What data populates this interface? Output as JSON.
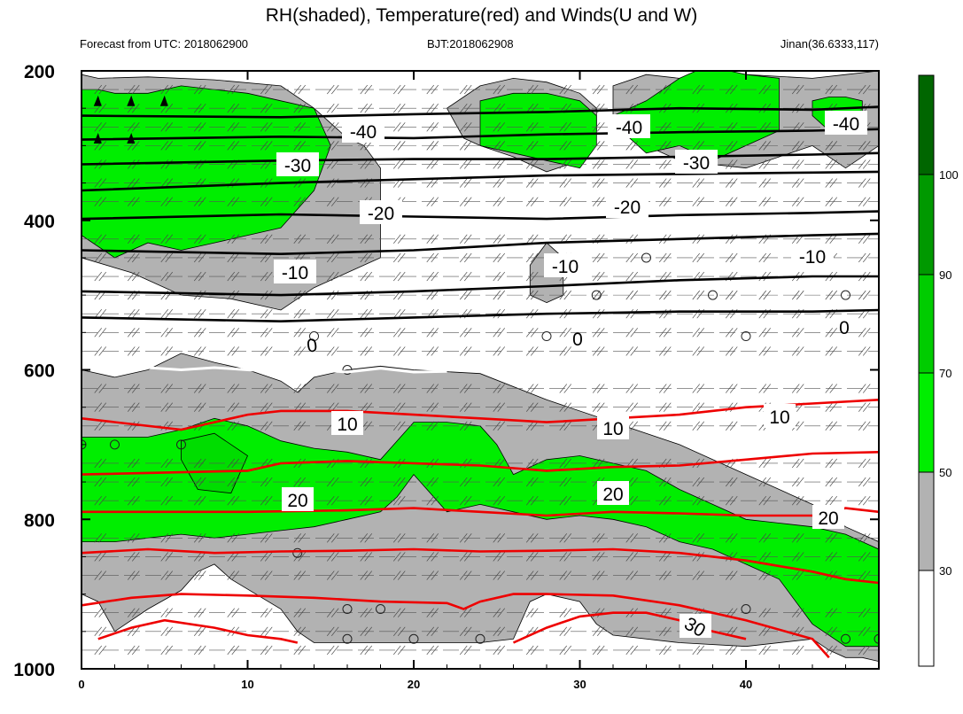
{
  "header": {
    "title": "RH(shaded), Temperature(red) and Winds(U and W)",
    "left": "Forecast from UTC: 2018062900",
    "center": "BJT:2018062908",
    "right": "Jinan(36.6333,117)"
  },
  "chart_data": {
    "type": "heatmap",
    "title": "RH(shaded), Temperature(red) and Winds(U and W)",
    "xlim": [
      0,
      48
    ],
    "ylim": [
      1000,
      200
    ],
    "x_ticks": [
      "0",
      "10",
      "20",
      "30",
      "40"
    ],
    "y_ticks": [
      "200",
      "400",
      "600",
      "800",
      "1000"
    ],
    "colorbar": {
      "levels": [
        "30",
        "50",
        "70",
        "90",
        "100"
      ],
      "colors": [
        "#ffffff",
        "#b2b2b2",
        "#00ee00",
        "#00cc00",
        "#009900",
        "#006600"
      ]
    },
    "rh_regions": {
      "gray_30_50": [
        {
          "x": [
            0,
            1,
            4,
            8,
            12,
            14,
            16,
            17,
            18,
            18,
            16,
            14,
            12,
            9,
            6,
            3,
            0
          ],
          "y": [
            205,
            210,
            208,
            212,
            220,
            250,
            290,
            300,
            330,
            450,
            470,
            490,
            520,
            505,
            500,
            470,
            450
          ]
        },
        {
          "x": [
            22,
            24,
            26,
            28,
            30,
            31,
            31,
            30,
            28,
            26,
            24,
            23,
            22
          ],
          "y": [
            250,
            220,
            210,
            215,
            230,
            250,
            280,
            320,
            335,
            315,
            300,
            290,
            250
          ]
        },
        {
          "x": [
            32,
            34,
            36,
            38,
            40,
            44,
            46,
            48,
            48,
            46,
            44,
            40,
            36,
            34,
            33,
            32
          ],
          "y": [
            220,
            205,
            210,
            200,
            205,
            210,
            205,
            200,
            300,
            330,
            300,
            330,
            320,
            300,
            280,
            260
          ]
        },
        {
          "x": [
            28,
            29,
            29,
            28,
            27,
            27
          ],
          "y": [
            510,
            500,
            450,
            430,
            460,
            500
          ]
        },
        {
          "x": [
            0,
            2,
            4,
            6,
            8,
            10,
            12,
            13,
            14,
            16,
            18,
            20,
            24,
            28,
            32,
            36,
            40,
            44,
            46,
            48,
            48,
            47,
            46,
            45,
            44,
            40,
            36,
            32,
            31,
            30,
            28,
            27,
            26,
            24,
            20,
            16,
            14,
            13,
            12,
            9,
            8,
            7,
            6,
            4,
            2,
            1,
            0
          ],
          "y": [
            600,
            610,
            600,
            578,
            590,
            600,
            615,
            630,
            610,
            600,
            595,
            600,
            605,
            640,
            670,
            700,
            740,
            780,
            810,
            830,
            990,
            985,
            985,
            975,
            960,
            970,
            965,
            955,
            940,
            910,
            900,
            910,
            960,
            965,
            965,
            965,
            965,
            950,
            920,
            880,
            860,
            870,
            895,
            920,
            950,
            910,
            900
          ]
        }
      ],
      "green_50_70": [
        {
          "x": [
            0,
            1,
            2,
            4,
            6,
            8,
            10,
            12,
            14,
            15,
            14,
            12,
            10,
            8,
            6,
            4,
            2,
            0
          ],
          "y": [
            225,
            225,
            230,
            230,
            220,
            225,
            230,
            240,
            250,
            300,
            360,
            410,
            420,
            430,
            440,
            430,
            450,
            420
          ]
        },
        {
          "x": [
            24,
            26,
            28,
            30,
            31,
            31,
            30,
            28,
            26,
            24
          ],
          "y": [
            240,
            230,
            230,
            240,
            260,
            300,
            330,
            320,
            310,
            300
          ]
        },
        {
          "x": [
            32,
            33,
            34,
            36,
            37,
            38,
            40,
            42,
            42,
            40,
            38,
            37,
            36,
            34,
            33,
            32
          ],
          "y": [
            260,
            250,
            240,
            210,
            200,
            195,
            205,
            210,
            280,
            300,
            320,
            310,
            300,
            310,
            290,
            270
          ]
        },
        {
          "x": [
            44,
            45,
            46,
            47,
            47,
            46,
            45,
            44
          ],
          "y": [
            240,
            235,
            235,
            240,
            260,
            280,
            280,
            260
          ]
        },
        {
          "x": [
            0,
            2,
            4,
            6,
            8,
            10,
            12,
            14,
            16,
            18,
            20,
            22,
            24,
            25,
            26,
            28,
            30,
            32,
            34,
            36,
            38,
            40,
            42,
            44,
            46,
            48,
            48,
            46,
            44,
            42,
            40,
            38,
            36,
            34,
            32,
            30,
            28,
            26,
            24,
            22,
            20,
            19,
            18,
            16,
            14,
            12,
            10,
            8,
            6,
            4,
            2,
            0
          ],
          "y": [
            690,
            690,
            690,
            680,
            665,
            675,
            695,
            705,
            710,
            720,
            670,
            670,
            675,
            700,
            740,
            720,
            715,
            725,
            735,
            760,
            780,
            800,
            805,
            810,
            820,
            840,
            970,
            970,
            940,
            880,
            860,
            840,
            830,
            810,
            800,
            795,
            800,
            790,
            780,
            790,
            740,
            770,
            790,
            800,
            810,
            815,
            820,
            825,
            820,
            825,
            830,
            830
          ]
        }
      ],
      "green_70_90": [
        {
          "x": [
            6,
            8,
            10,
            9,
            7,
            6
          ],
          "y": [
            695,
            685,
            715,
            765,
            760,
            720
          ]
        }
      ]
    },
    "temperature_contours": {
      "black": [
        {
          "level": -40,
          "x": [
            0,
            12,
            20,
            28,
            36,
            44,
            48
          ],
          "y": [
            260,
            262,
            258,
            255,
            250,
            252,
            248
          ]
        },
        {
          "level": -40,
          "x": [
            0,
            12,
            20,
            28,
            36,
            44,
            48
          ],
          "y": [
            292,
            288,
            290,
            285,
            282,
            280,
            278
          ]
        },
        {
          "level": -30,
          "x": [
            0,
            12,
            20,
            28,
            36,
            44,
            48
          ],
          "y": [
            325,
            320,
            318,
            318,
            315,
            312,
            310
          ]
        },
        {
          "level": -30,
          "x": [
            0,
            12,
            20,
            28,
            36,
            44,
            48
          ],
          "y": [
            360,
            350,
            345,
            340,
            338,
            336,
            335
          ]
        },
        {
          "level": -20,
          "x": [
            0,
            12,
            20,
            28,
            36,
            44,
            48
          ],
          "y": [
            398,
            392,
            395,
            398,
            393,
            390,
            388
          ]
        },
        {
          "level": -10,
          "x": [
            0,
            12,
            20,
            28,
            36,
            44,
            48
          ],
          "y": [
            440,
            445,
            440,
            430,
            425,
            420,
            418
          ]
        },
        {
          "level": -10,
          "x": [
            0,
            12,
            20,
            28,
            36,
            44,
            48
          ],
          "y": [
            495,
            500,
            495,
            488,
            480,
            475,
            475
          ]
        },
        {
          "level": -10,
          "x": [
            0,
            12,
            20,
            28,
            36,
            44,
            48
          ],
          "y": [
            530,
            535,
            530,
            525,
            522,
            522,
            520
          ]
        }
      ],
      "zero": [
        {
          "level": 0,
          "x": [
            1,
            4,
            6,
            8,
            10,
            12,
            14,
            16,
            18,
            20,
            22
          ],
          "y": [
            600,
            597,
            600,
            597,
            600,
            602,
            600,
            603,
            598,
            603,
            602
          ]
        }
      ],
      "red": [
        {
          "level": 10,
          "x": [
            0,
            6,
            8,
            10,
            12,
            16,
            20,
            24,
            28,
            32,
            36,
            40,
            44,
            48
          ],
          "y": [
            665,
            680,
            670,
            660,
            655,
            655,
            660,
            665,
            670,
            665,
            660,
            650,
            645,
            640
          ]
        },
        {
          "level": 10,
          "x": [
            0,
            10,
            12,
            16,
            20,
            24,
            28,
            32,
            36,
            40,
            44,
            48
          ],
          "y": [
            740,
            735,
            725,
            722,
            725,
            728,
            735,
            730,
            728,
            720,
            712,
            710
          ]
        },
        {
          "level": 20,
          "x": [
            0,
            10,
            16,
            20,
            24,
            28,
            32,
            36,
            40,
            44,
            46,
            48
          ],
          "y": [
            790,
            790,
            788,
            785,
            790,
            795,
            790,
            792,
            795,
            795,
            785,
            790
          ]
        },
        {
          "level": 20,
          "x": [
            0,
            4,
            8,
            12,
            16,
            20,
            24,
            28,
            32,
            36,
            40,
            44,
            46,
            48
          ],
          "y": [
            845,
            840,
            845,
            843,
            842,
            840,
            843,
            842,
            840,
            845,
            855,
            870,
            880,
            885
          ]
        },
        {
          "level": 20,
          "x": [
            0,
            3,
            6,
            10,
            14,
            18,
            22,
            23,
            24,
            26,
            28,
            32,
            36,
            40,
            44,
            45
          ],
          "y": [
            915,
            905,
            900,
            902,
            905,
            910,
            912,
            920,
            910,
            900,
            900,
            902,
            915,
            935,
            960,
            985
          ]
        },
        {
          "level": 30,
          "x": [
            1,
            3,
            5,
            8,
            10,
            12,
            13
          ],
          "y": [
            960,
            945,
            935,
            945,
            955,
            960,
            965
          ]
        },
        {
          "level": 30,
          "x": [
            26,
            28,
            30,
            32,
            34,
            36,
            38,
            40
          ],
          "y": [
            965,
            945,
            930,
            925,
            925,
            935,
            950,
            960
          ]
        }
      ]
    },
    "contour_labels": [
      "-40",
      "-40",
      "-40",
      "-30",
      "-30",
      "-20",
      "-20",
      "-10",
      "-10",
      "-10",
      "0",
      "0",
      "0",
      "10",
      "10",
      "10",
      "20",
      "20",
      "20",
      "30"
    ],
    "calm_wind_points": {
      "x": [
        14,
        28,
        40,
        34,
        31,
        38,
        46,
        16,
        0,
        2,
        6,
        13,
        16,
        18,
        16,
        20,
        24,
        40,
        46,
        48
      ],
      "y": [
        555,
        555,
        555,
        450,
        500,
        500,
        500,
        600,
        700,
        700,
        700,
        845,
        920,
        920,
        960,
        960,
        960,
        920,
        960,
        960
      ]
    }
  }
}
